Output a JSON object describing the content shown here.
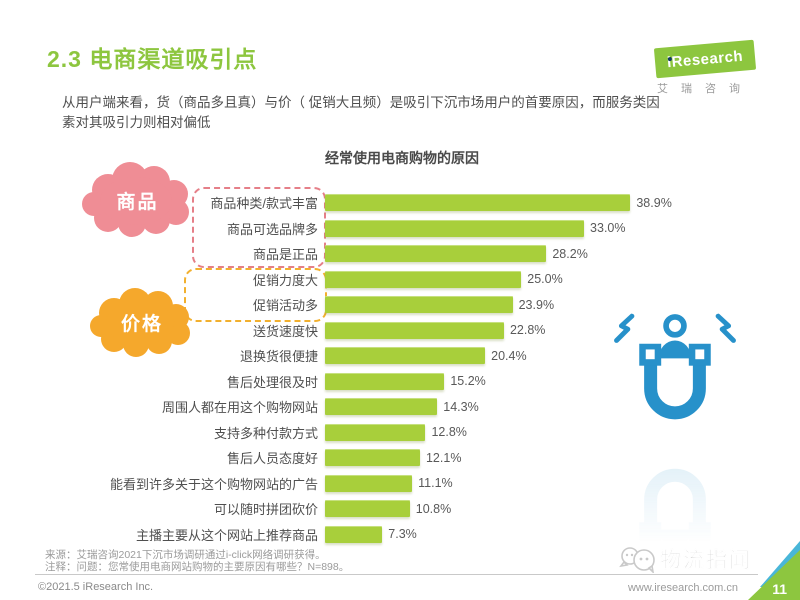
{
  "page": {
    "title": "2.3 电商渠道吸引点",
    "subtitle_line1": "从用户端来看，货（商品多且真）与价（ 促销大且频）是吸引下沉市场用户的首要原因，而服务类因",
    "subtitle_line2": "素对其吸引力则相对偏低",
    "page_number": "11"
  },
  "logo": {
    "brand": "iResearch",
    "brand_cn": "艾瑞咨询",
    "brand_color": "#8dc63f"
  },
  "chart_data": {
    "type": "bar",
    "orientation": "horizontal",
    "title": "经常使用电商购物的原因",
    "xlabel": "",
    "ylabel": "",
    "unit": "%",
    "xlim": [
      0,
      40
    ],
    "grid": false,
    "legend_position": "none",
    "bar_color": "#a8cf3b",
    "categories": [
      "商品种类/款式丰富",
      "商品可选品牌多",
      "商品是正品",
      "促销力度大",
      "促销活动多",
      "送货速度快",
      "退换货很便捷",
      "售后处理很及时",
      "周围人都在用这个购物网站",
      "支持多种付款方式",
      "售后人员态度好",
      "能看到许多关于这个购物网站的广告",
      "可以随时拼团砍价",
      "主播主要从这个网站上推荐商品"
    ],
    "values": [
      38.9,
      33.0,
      28.2,
      25.0,
      23.9,
      22.8,
      20.4,
      15.2,
      14.3,
      12.8,
      12.1,
      11.1,
      10.8,
      7.3
    ],
    "value_labels": [
      "38.9%",
      "33.0%",
      "28.2%",
      "25.0%",
      "23.9%",
      "22.8%",
      "20.4%",
      "15.2%",
      "14.3%",
      "12.8%",
      "12.1%",
      "11.1%",
      "10.8%",
      "7.3%"
    ],
    "groups": [
      {
        "label": "商品",
        "color": "#ef8d95",
        "rows": [
          0,
          1,
          2
        ]
      },
      {
        "label": "价格",
        "color": "#f5a82c",
        "rows": [
          3,
          4
        ]
      }
    ]
  },
  "illustration": {
    "name": "magnet-attracting-user",
    "color": "#2791ca"
  },
  "footnotes": {
    "source": "来源：艾瑞咨询2021下沉市场调研通过i-click网络调研获得。",
    "note": "注释：问题：您常使用电商网站购物的主要原因有哪些？N=898。",
    "copyright": "©2021.5 iResearch Inc.",
    "website": "www.iresearch.com.cn",
    "watermark": "物流指闻"
  }
}
